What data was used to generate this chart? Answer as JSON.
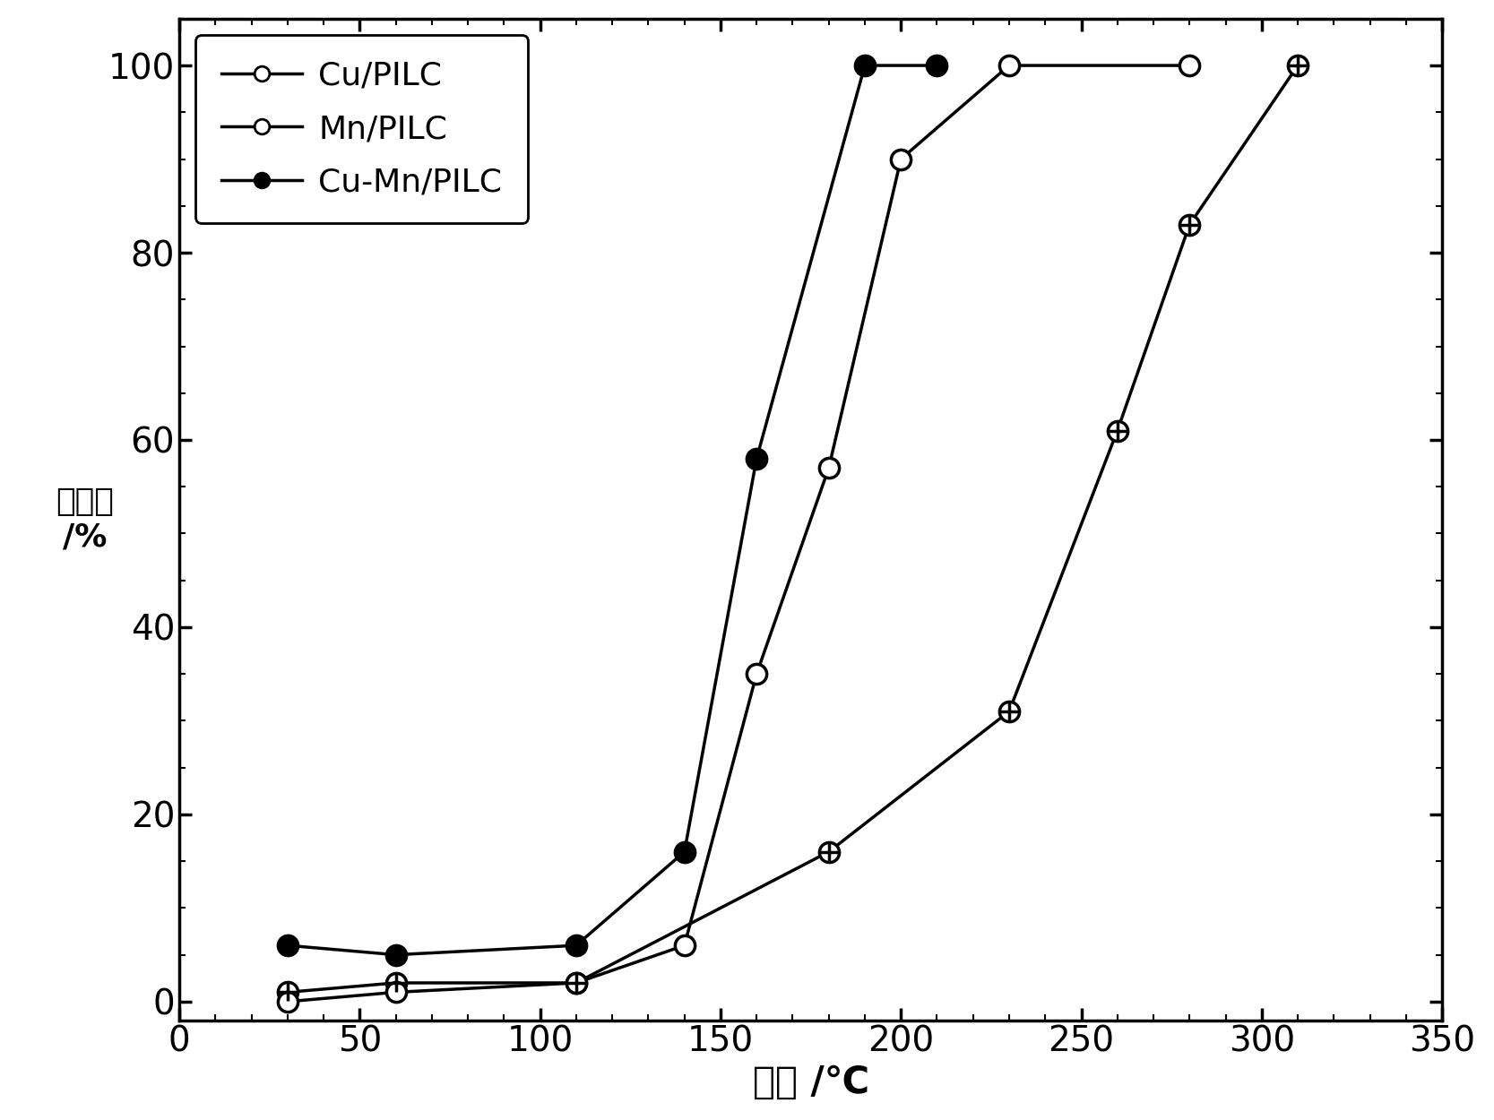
{
  "series": [
    {
      "label": "Cu/PILC",
      "x": [
        30,
        60,
        110,
        180,
        230,
        260,
        280,
        310
      ],
      "y": [
        1,
        2,
        2,
        16,
        31,
        61,
        83,
        100
      ],
      "color": "#000000",
      "marker": "circle_cross",
      "linestyle": "-",
      "linewidth": 2.5,
      "markersize": 16
    },
    {
      "label": "Mn/PILC",
      "x": [
        30,
        60,
        110,
        140,
        160,
        180,
        200,
        230,
        280
      ],
      "y": [
        0,
        1,
        2,
        6,
        35,
        57,
        90,
        100,
        100
      ],
      "color": "#000000",
      "marker": "circle_open",
      "linestyle": "-",
      "linewidth": 2.5,
      "markersize": 16
    },
    {
      "label": "Cu-Mn/PILC",
      "x": [
        30,
        60,
        110,
        140,
        160,
        190,
        210
      ],
      "y": [
        6,
        5,
        6,
        16,
        58,
        100,
        100
      ],
      "color": "#000000",
      "marker": "circle_filled",
      "linestyle": "-",
      "linewidth": 2.5,
      "markersize": 16
    }
  ],
  "xlabel": "温度 /℃",
  "ylabel": "转化率\n/%",
  "xlim": [
    0,
    350
  ],
  "ylim": [
    -2,
    105
  ],
  "xticks": [
    0,
    50,
    100,
    150,
    200,
    250,
    300,
    350
  ],
  "yticks": [
    0,
    20,
    40,
    60,
    80,
    100
  ],
  "xlabel_fontsize": 30,
  "ylabel_fontsize": 26,
  "tick_fontsize": 28,
  "legend_fontsize": 26,
  "background_color": "#ffffff",
  "legend_loc": "upper left"
}
